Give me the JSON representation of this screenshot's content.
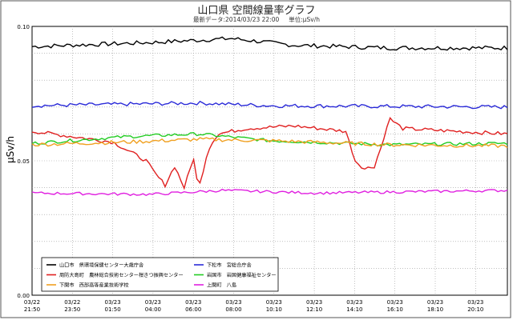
{
  "chart_data": {
    "type": "line",
    "title": "山口県 空間線量率グラフ",
    "subtitle": {
      "latest_label": "最新データ:",
      "latest_time": "2014/03/23 22:00",
      "unit_label": "単位:",
      "unit": "μSv/h"
    },
    "ylabel": "μSv/h",
    "ylim": [
      0,
      0.1
    ],
    "y_ticks": [
      "0.00",
      "0.05",
      "0.10"
    ],
    "x_ticks": [
      [
        "03/22",
        "21:50"
      ],
      [
        "03/22",
        "23:50"
      ],
      [
        "03/23",
        "01:50"
      ],
      [
        "03/23",
        "04:00"
      ],
      [
        "03/23",
        "06:00"
      ],
      [
        "03/23",
        "08:00"
      ],
      [
        "03/23",
        "10:10"
      ],
      [
        "03/23",
        "12:10"
      ],
      [
        "03/23",
        "14:10"
      ],
      [
        "03/23",
        "16:10"
      ],
      [
        "03/23",
        "18:10"
      ],
      [
        "03/23",
        "20:10"
      ]
    ],
    "grid": true,
    "legend_position": "bottom-left",
    "colors": {
      "yamaguchi": "#000000",
      "kudamatsu": "#2a2ad8",
      "suooshima": "#e02020",
      "iwakuni": "#22cc22",
      "shimonoseki": "#f0a020",
      "kaminoseki": "#e020e0"
    },
    "series": [
      {
        "key": "yamaguchi",
        "name": "山口市　県環境保健センター大歳庁舎",
        "base": 0.0925,
        "noise": 0.0008,
        "segments": [
          [
            0.0,
            0.0925
          ],
          [
            0.25,
            0.094
          ],
          [
            0.42,
            0.0955
          ],
          [
            0.55,
            0.093
          ],
          [
            0.75,
            0.092
          ],
          [
            1.0,
            0.092
          ]
        ]
      },
      {
        "key": "kudamatsu",
        "name": "下松市　宮総合庁舎",
        "base": 0.0705,
        "noise": 0.0007,
        "segments": [
          [
            0.0,
            0.0705
          ],
          [
            0.35,
            0.0715
          ],
          [
            0.5,
            0.0705
          ],
          [
            1.0,
            0.07
          ]
        ]
      },
      {
        "key": "suooshima",
        "name": "周防大島町　農林総合技術センター柑きつ振興センター",
        "base": 0.06,
        "noise": 0.0007,
        "segments": [
          [
            0.0,
            0.061
          ],
          [
            0.17,
            0.057
          ],
          [
            0.24,
            0.05
          ],
          [
            0.26,
            0.045
          ],
          [
            0.28,
            0.041
          ],
          [
            0.3,
            0.048
          ],
          [
            0.32,
            0.04
          ],
          [
            0.34,
            0.051
          ],
          [
            0.35,
            0.039
          ],
          [
            0.37,
            0.054
          ],
          [
            0.39,
            0.06
          ],
          [
            0.45,
            0.062
          ],
          [
            0.55,
            0.063
          ],
          [
            0.66,
            0.061
          ],
          [
            0.68,
            0.05
          ],
          [
            0.7,
            0.047
          ],
          [
            0.72,
            0.048
          ],
          [
            0.74,
            0.058
          ],
          [
            0.75,
            0.066
          ],
          [
            0.78,
            0.062
          ],
          [
            1.0,
            0.06
          ]
        ]
      },
      {
        "key": "iwakuni",
        "name": "岩国市　岩国健康福祉センター",
        "base": 0.057,
        "noise": 0.0006,
        "segments": [
          [
            0.0,
            0.0565
          ],
          [
            0.2,
            0.059
          ],
          [
            0.35,
            0.06
          ],
          [
            0.5,
            0.0575
          ],
          [
            0.75,
            0.056
          ],
          [
            1.0,
            0.0565
          ]
        ]
      },
      {
        "key": "shimonoseki",
        "name": "下関市　西部高等産業技術学校",
        "base": 0.0565,
        "noise": 0.0007,
        "segments": [
          [
            0.0,
            0.056
          ],
          [
            0.2,
            0.057
          ],
          [
            0.35,
            0.058
          ],
          [
            0.5,
            0.0575
          ],
          [
            0.75,
            0.056
          ],
          [
            1.0,
            0.0555
          ]
        ]
      },
      {
        "key": "kaminoseki",
        "name": "上関町　八島",
        "base": 0.038,
        "noise": 0.0005,
        "segments": [
          [
            0.0,
            0.038
          ],
          [
            0.25,
            0.0375
          ],
          [
            0.4,
            0.039
          ],
          [
            0.6,
            0.038
          ],
          [
            0.8,
            0.0385
          ],
          [
            1.0,
            0.039
          ]
        ]
      }
    ],
    "legend_layout": [
      [
        "yamaguchi",
        "kudamatsu"
      ],
      [
        "suooshima",
        "iwakuni"
      ],
      [
        "shimonoseki",
        "kaminoseki"
      ]
    ]
  }
}
